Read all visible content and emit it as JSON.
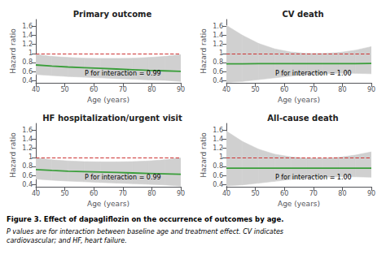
{
  "chart_data": [
    {
      "type": "line",
      "title": "Primary outcome",
      "xlabel": "Age (years)",
      "ylabel": "Hazard ratio",
      "x": [
        40,
        45.55555555555556,
        51.111111111111114,
        56.666666666666664,
        62.22222222222222,
        67.77777777777777,
        73.33333333333333,
        78.88888888888889,
        84.44444444444444,
        90
      ],
      "xlim": [
        40,
        90
      ],
      "xticks": [
        40,
        50,
        60,
        70,
        80,
        90
      ],
      "ylim": [
        0.35,
        1.75
      ],
      "yticks": [
        0.4,
        0.6,
        0.8,
        1,
        1.2,
        1.4,
        1.6
      ],
      "grid": false,
      "series": [
        {
          "type": "band",
          "color": "#d0d0d0",
          "lower": [
            0.535,
            0.51,
            0.49,
            0.475,
            0.46,
            0.445,
            0.43,
            0.415,
            0.405,
            0.38
          ],
          "upper": [
            0.975,
            0.935,
            0.91,
            0.895,
            0.89,
            0.89,
            0.895,
            0.91,
            0.935,
            0.975
          ]
        },
        {
          "type": "line",
          "color": "#3a9e3a",
          "values": [
            0.745,
            0.72,
            0.7,
            0.685,
            0.67,
            0.655,
            0.64,
            0.625,
            0.615,
            0.605
          ]
        }
      ],
      "reference_line": {
        "y": 1,
        "color": "#cc3333",
        "line_style": "dashed"
      },
      "annotations": [
        "P for interaction = 0.99"
      ]
    },
    {
      "type": "line",
      "title": "CV death",
      "xlabel": "Age (years)",
      "ylabel": "Hazard ratio",
      "x": [
        40,
        45.55555555555556,
        51.111111111111114,
        56.666666666666664,
        62.22222222222222,
        67.77777777777777,
        73.33333333333333,
        78.88888888888889,
        84.44444444444444,
        90
      ],
      "xlim": [
        40,
        90
      ],
      "xticks": [
        40,
        50,
        60,
        70,
        80,
        90
      ],
      "ylim": [
        0.35,
        1.75
      ],
      "yticks": [
        0.4,
        0.6,
        0.8,
        1,
        1.2,
        1.4,
        1.6
      ],
      "grid": false,
      "series": [
        {
          "type": "band",
          "color": "#d0d0d0",
          "lower": [
            0.36,
            0.38,
            0.42,
            0.46,
            0.5,
            0.54,
            0.55,
            0.56,
            0.56,
            0.55
          ],
          "upper": [
            1.62,
            1.4,
            1.22,
            1.1,
            1.03,
            1.0,
            1.0,
            1.02,
            1.07,
            1.15
          ]
        },
        {
          "type": "line",
          "color": "#3a9e3a",
          "values": [
            0.77,
            0.77,
            0.775,
            0.775,
            0.775,
            0.775,
            0.775,
            0.775,
            0.775,
            0.78
          ]
        }
      ],
      "reference_line": {
        "y": 1,
        "color": "#cc3333",
        "line_style": "dashed"
      },
      "annotations": [
        "P for interaction = 1.00"
      ]
    },
    {
      "type": "line",
      "title": "HF hospitalization/urgent visit",
      "xlabel": "Age (years)",
      "ylabel": "Hazard ratio",
      "x": [
        40,
        45.55555555555556,
        51.111111111111114,
        56.666666666666664,
        62.22222222222222,
        67.77777777777777,
        73.33333333333333,
        78.88888888888889,
        84.44444444444444,
        90
      ],
      "xlim": [
        40,
        90
      ],
      "xticks": [
        40,
        50,
        60,
        70,
        80,
        90
      ],
      "ylim": [
        0.35,
        1.75
      ],
      "yticks": [
        0.4,
        0.6,
        0.8,
        1,
        1.2,
        1.4,
        1.6
      ],
      "grid": false,
      "series": [
        {
          "type": "band",
          "color": "#d0d0d0",
          "lower": [
            0.52,
            0.495,
            0.475,
            0.46,
            0.445,
            0.432,
            0.418,
            0.405,
            0.39,
            0.365
          ],
          "upper": [
            0.985,
            0.945,
            0.92,
            0.905,
            0.9,
            0.9,
            0.905,
            0.92,
            0.945,
            0.985
          ]
        },
        {
          "type": "line",
          "color": "#3a9e3a",
          "values": [
            0.73,
            0.71,
            0.695,
            0.685,
            0.675,
            0.665,
            0.655,
            0.645,
            0.635,
            0.625
          ]
        }
      ],
      "reference_line": {
        "y": 1,
        "color": "#cc3333",
        "line_style": "dashed"
      },
      "annotations": [
        "P for interaction = 0.99"
      ]
    },
    {
      "type": "line",
      "title": "All-cause death",
      "xlabel": "Age (years)",
      "ylabel": "Hazard ratio",
      "x": [
        40,
        45.55555555555556,
        51.111111111111114,
        56.666666666666664,
        62.22222222222222,
        67.77777777777777,
        73.33333333333333,
        78.88888888888889,
        84.44444444444444,
        90
      ],
      "xlim": [
        40,
        90
      ],
      "xticks": [
        40,
        50,
        60,
        70,
        80,
        90
      ],
      "ylim": [
        0.35,
        1.75
      ],
      "yticks": [
        0.4,
        0.6,
        0.8,
        1,
        1.2,
        1.4,
        1.6
      ],
      "grid": false,
      "series": [
        {
          "type": "band",
          "color": "#d0d0d0",
          "lower": [
            0.37,
            0.39,
            0.43,
            0.47,
            0.51,
            0.55,
            0.56,
            0.57,
            0.57,
            0.56
          ],
          "upper": [
            1.58,
            1.35,
            1.18,
            1.07,
            1.01,
            0.98,
            0.98,
            1.0,
            1.05,
            1.12
          ]
        },
        {
          "type": "line",
          "color": "#3a9e3a",
          "values": [
            0.76,
            0.76,
            0.76,
            0.76,
            0.76,
            0.76,
            0.76,
            0.76,
            0.76,
            0.76
          ]
        }
      ],
      "reference_line": {
        "y": 1,
        "color": "#cc3333",
        "line_style": "dashed"
      },
      "annotations": [
        "P for interaction = 1.00"
      ]
    }
  ],
  "annotations": [
    {
      "text": "Figure 3. Effect of dapagliflozin on the occurrence of outcomes by age.",
      "style": "bold"
    },
    {
      "text": "P values are for interaction between baseline age and treatment effect. CV indicates cardiovascular; and HF, heart failure.",
      "style": "italic"
    }
  ]
}
